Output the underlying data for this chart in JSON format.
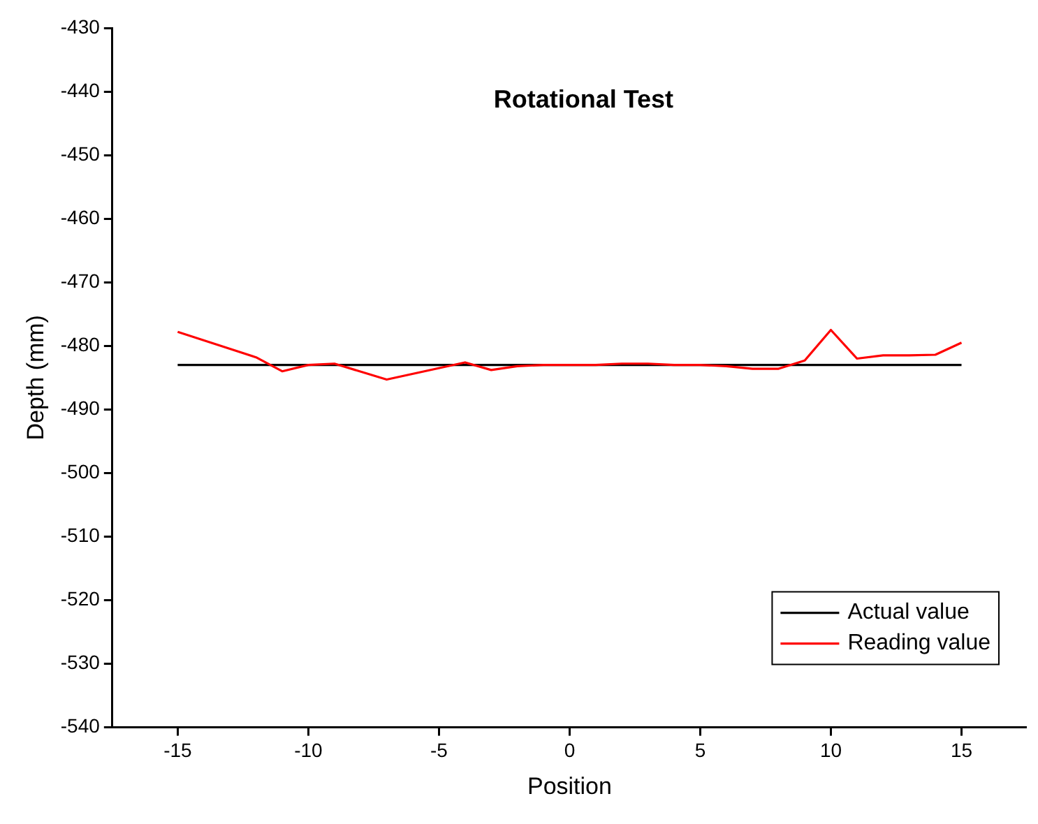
{
  "chart_data": {
    "type": "line",
    "title": "Rotational Test",
    "xlabel": "Position",
    "ylabel": "Depth (mm)",
    "xlim": [
      -17.5,
      17.5
    ],
    "xticks": [
      -15,
      -10,
      -5,
      0,
      5,
      10,
      15
    ],
    "ylim": [
      -540,
      -430
    ],
    "yticks": [
      -540,
      -530,
      -520,
      -510,
      -500,
      -490,
      -480,
      -470,
      -460,
      -450,
      -440,
      -430
    ],
    "grid": false,
    "legend": "bottom right",
    "marker": "none",
    "line_style": "solid",
    "series": [
      {
        "name": "Actual value",
        "color": "#000000",
        "x": [
          -15,
          15
        ],
        "values": [
          -483,
          -483
        ]
      },
      {
        "name": "Reading value",
        "color": "#ff0000",
        "x": [
          -15,
          -12,
          -11,
          -10,
          -9,
          -7,
          -4,
          -3,
          -2,
          -1,
          0,
          1,
          2,
          3,
          4,
          5,
          6,
          7,
          8,
          9,
          10,
          11,
          12,
          13,
          14,
          15
        ],
        "values": [
          -477.8,
          -481.8,
          -484,
          -483,
          -482.8,
          -485.3,
          -482.6,
          -483.8,
          -483.2,
          -483,
          -483,
          -483,
          -482.8,
          -482.8,
          -483,
          -483,
          -483.2,
          -483.6,
          -483.6,
          -482.3,
          -477.5,
          -482,
          -481.5,
          -481.5,
          -481.4,
          -479.5
        ]
      }
    ]
  }
}
